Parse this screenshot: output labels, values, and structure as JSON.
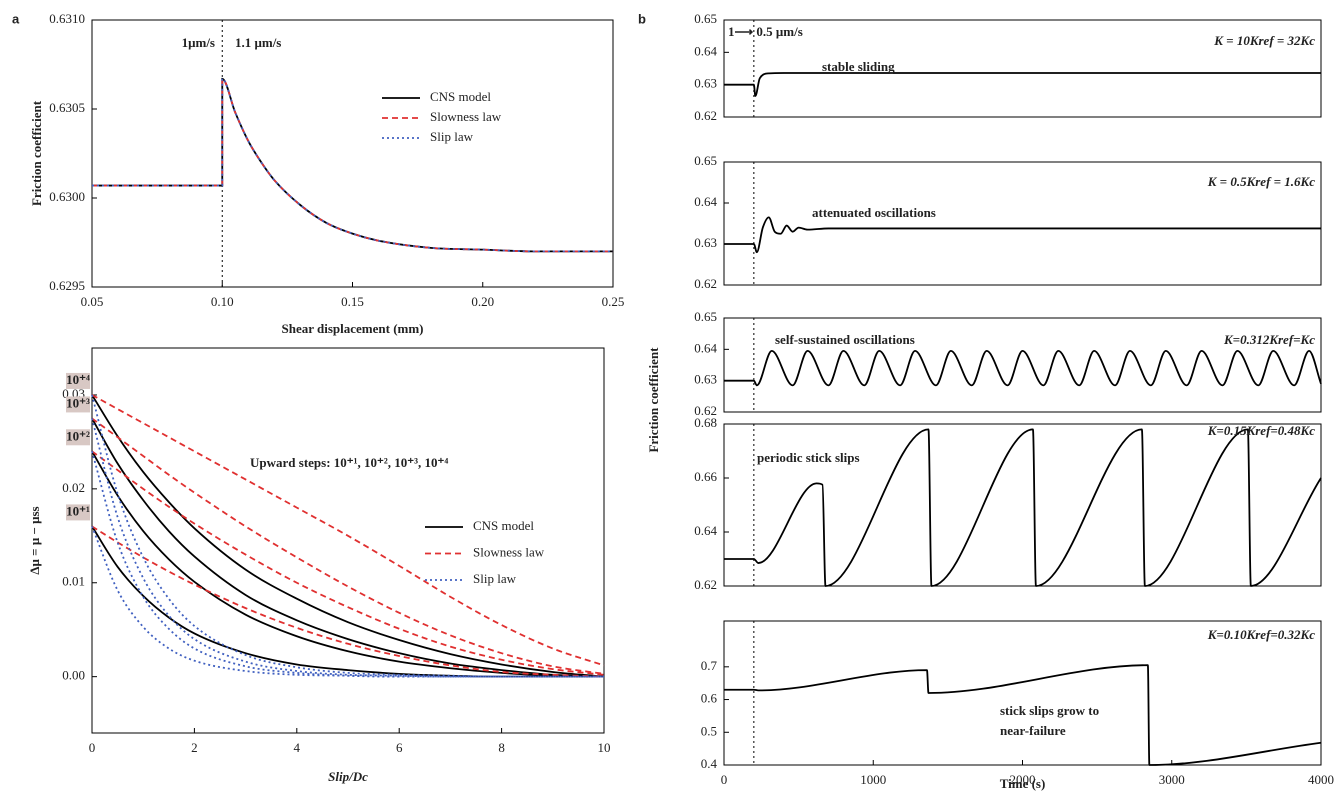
{
  "chart_data": [
    {
      "type": "line",
      "panel_label": "a",
      "xlabel": "Shear displacement (mm)",
      "ylabel": "Friction coefficient",
      "annotations": [
        "1μm/s",
        "1.1 μm/s"
      ],
      "annotation_color": "#d62728",
      "vline": 0.1,
      "xlim": [
        0.05,
        0.25
      ],
      "xticks": [
        0.05,
        {
          "value": 0.1,
          "label": "0.10"
        },
        0.15,
        {
          "value": 0.2,
          "label": "0.20"
        },
        0.25
      ],
      "ylim": [
        0.6295,
        0.631
      ],
      "yticks": [
        {
          "value": 0.631,
          "label": "0.6310"
        },
        0.6305,
        {
          "value": 0.63,
          "label": "0.6300"
        },
        0.6295
      ],
      "x": [
        0.05,
        0.1,
        0.1,
        0.105,
        0.11,
        0.115,
        0.12,
        0.13,
        0.14,
        0.15,
        0.16,
        0.18,
        0.2,
        0.22,
        0.25
      ],
      "series": [
        {
          "name": "CNS model",
          "color": "#000000",
          "dash": "solid",
          "values": [
            0.63007,
            0.63007,
            0.63067,
            0.63048,
            0.63032,
            0.6302,
            0.6301,
            0.62996,
            0.62986,
            0.6298,
            0.62976,
            0.62972,
            0.62971,
            0.6297,
            0.6297
          ]
        },
        {
          "name": "Slowness law",
          "color": "#e03030",
          "dash": "dashed",
          "values": [
            0.63007,
            0.63007,
            0.63067,
            0.63048,
            0.63032,
            0.6302,
            0.6301,
            0.62996,
            0.62986,
            0.6298,
            0.62976,
            0.62972,
            0.62971,
            0.6297,
            0.6297
          ]
        },
        {
          "name": "Slip law",
          "color": "#4060c0",
          "dash": "dotted",
          "values": [
            0.63007,
            0.63007,
            0.63067,
            0.63048,
            0.63032,
            0.6302,
            0.6301,
            0.62996,
            0.62986,
            0.6298,
            0.62976,
            0.62972,
            0.62971,
            0.6297,
            0.6297
          ]
        }
      ]
    },
    {
      "type": "line",
      "xlabel": "Slip/Dc",
      "ylabel": "Δμ = μ − μss",
      "annotations": [
        "Upward steps: 10⁺¹, 10⁺², 10⁺³, 10⁺⁴"
      ],
      "step_labels": [
        "10⁺⁴",
        "10⁺³",
        "10⁺²",
        "10⁺¹"
      ],
      "xlim": [
        0,
        10
      ],
      "xticks": [
        0,
        2,
        4,
        6,
        8,
        10
      ],
      "ylim": [
        -0.006,
        0.035
      ],
      "yticks": [
        {
          "value": 0,
          "label": "0.00"
        },
        0.01,
        0.02,
        0.03
      ],
      "x": [
        0,
        0.5,
        1,
        1.5,
        2,
        3,
        4,
        5,
        6,
        7,
        8,
        9,
        10
      ],
      "series": [
        {
          "name": "CNS model",
          "color": "#000000",
          "dash": "solid",
          "values": [
            [
              0.03,
              0.0256,
              0.0218,
              0.0186,
              0.0158,
              0.0114,
              0.0083,
              0.0058,
              0.0039,
              0.0024,
              0.0013,
              0.0005,
              0
            ],
            [
              0.0275,
              0.0227,
              0.0188,
              0.0155,
              0.0128,
              0.0087,
              0.006,
              0.004,
              0.0025,
              0.0014,
              0.0007,
              0.0002,
              0
            ],
            [
              0.024,
              0.0193,
              0.0155,
              0.0125,
              0.0101,
              0.0066,
              0.0043,
              0.0027,
              0.0016,
              0.0009,
              0.0004,
              0.0001,
              0
            ],
            [
              0.016,
              0.0117,
              0.0086,
              0.0063,
              0.0046,
              0.0025,
              0.0013,
              0.0007,
              0.0003,
              0.0001,
              0,
              0,
              0
            ]
          ]
        },
        {
          "name": "Slowness law",
          "color": "#e03030",
          "dash": "dashed",
          "values": [
            [
              0.03,
              0.0285,
              0.027,
              0.0255,
              0.024,
              0.021,
              0.018,
              0.015,
              0.0118,
              0.0085,
              0.0055,
              0.003,
              0.0012
            ],
            [
              0.0275,
              0.0255,
              0.0235,
              0.0215,
              0.0196,
              0.016,
              0.0127,
              0.0096,
              0.0068,
              0.0044,
              0.0025,
              0.0011,
              0.0003
            ],
            [
              0.024,
              0.022,
              0.02,
              0.0181,
              0.0163,
              0.013,
              0.01,
              0.0074,
              0.0051,
              0.0032,
              0.0018,
              0.0008,
              0.0002
            ],
            [
              0.016,
              0.0143,
              0.0127,
              0.0112,
              0.0098,
              0.0073,
              0.0052,
              0.0035,
              0.0022,
              0.0012,
              0.0005,
              0.0002,
              0
            ]
          ]
        },
        {
          "name": "Slip law",
          "color": "#4060c0",
          "dash": "dotted",
          "values": [
            [
              0.03,
              0.0195,
              0.0127,
              0.0083,
              0.0054,
              0.0023,
              0.001,
              0.0004,
              0.0002,
              0.0001,
              0,
              0,
              0
            ],
            [
              0.0275,
              0.017,
              0.0105,
              0.0065,
              0.004,
              0.0016,
              0.0006,
              0.0002,
              0.0001,
              0,
              0,
              0,
              0
            ],
            [
              0.024,
              0.0143,
              0.0085,
              0.0051,
              0.003,
              0.0011,
              0.0004,
              0.0001,
              0,
              0,
              0,
              0,
              0
            ],
            [
              0.016,
              0.0092,
              0.0053,
              0.003,
              0.0017,
              0.0006,
              0.0002,
              0.0001,
              0,
              0,
              0,
              0,
              0
            ]
          ]
        }
      ]
    },
    {
      "type": "line",
      "panel_label": "b",
      "step_note": "1⟶ 0.5 μm/s",
      "annotations": [
        "stable sliding"
      ],
      "k_label": "K = 10Kref = 32Kc",
      "vline": 200,
      "xlim": [
        0,
        4000
      ],
      "ylim": [
        0.62,
        0.65
      ],
      "yticks": [
        0.62,
        0.63,
        0.64,
        0.65
      ],
      "color": "#000000",
      "x": [
        0,
        200,
        210,
        240,
        300,
        400,
        4000
      ],
      "values": [
        0.63,
        0.63,
        0.6265,
        0.632,
        0.6335,
        0.6336,
        0.6336
      ]
    },
    {
      "type": "line",
      "annotations": [
        "attenuated oscillations"
      ],
      "k_label": "K = 0.5Kref = 1.6Kc",
      "vline": 200,
      "xlim": [
        0,
        4000
      ],
      "ylim": [
        0.62,
        0.65
      ],
      "yticks": [
        0.62,
        0.63,
        0.64,
        0.65
      ],
      "color": "#000000",
      "x": [
        0,
        200,
        220,
        260,
        300,
        340,
        380,
        420,
        460,
        500,
        560,
        700,
        4000
      ],
      "values": [
        0.63,
        0.63,
        0.628,
        0.634,
        0.6365,
        0.633,
        0.6325,
        0.6345,
        0.633,
        0.634,
        0.6335,
        0.6338,
        0.6338
      ]
    },
    {
      "type": "line",
      "ylabel": "Friction coefficient",
      "annotations": [
        "self-sustained oscillations"
      ],
      "k_label": "K=0.312Kref=Kc",
      "vline": 200,
      "xlim": [
        0,
        4000
      ],
      "ylim": [
        0.62,
        0.65
      ],
      "yticks": [
        0.62,
        0.63,
        0.64,
        0.65
      ],
      "color": "#000000",
      "x": [
        0,
        200,
        220,
        320,
        460,
        560,
        700,
        800,
        940,
        1040,
        1180,
        1280,
        1420,
        1520,
        1660,
        1760,
        1900,
        2000,
        2140,
        2240,
        2380,
        2480,
        2620,
        2720,
        2860,
        2960,
        3100,
        3200,
        3340,
        3440,
        3580,
        3680,
        3820,
        3920,
        4000
      ],
      "values": [
        0.63,
        0.63,
        0.6285,
        0.6395,
        0.6285,
        0.6395,
        0.6285,
        0.6395,
        0.6285,
        0.6395,
        0.6285,
        0.6395,
        0.6285,
        0.6395,
        0.6285,
        0.6395,
        0.6285,
        0.6395,
        0.6285,
        0.6395,
        0.6285,
        0.6395,
        0.6285,
        0.6395,
        0.6285,
        0.6395,
        0.6285,
        0.6395,
        0.6285,
        0.6395,
        0.6285,
        0.6395,
        0.6285,
        0.6395,
        0.629
      ]
    },
    {
      "type": "line",
      "annotations": [
        "periodic stick slips"
      ],
      "k_label": "K=0.15Kref=0.48Kc",
      "vline": 200,
      "xlim": [
        0,
        4000
      ],
      "ylim": [
        0.62,
        0.68
      ],
      "yticks": [
        0.62,
        0.64,
        0.66,
        0.68
      ],
      "color": "#000000",
      "x": [
        0,
        200,
        230,
        620,
        660,
        680,
        1370,
        1390,
        2070,
        2090,
        2800,
        2820,
        3510,
        3530,
        4000
      ],
      "values": [
        0.63,
        0.63,
        0.6285,
        0.658,
        0.6575,
        0.62,
        0.678,
        0.62,
        0.678,
        0.62,
        0.678,
        0.62,
        0.678,
        0.62,
        0.66
      ]
    },
    {
      "type": "line",
      "xlabel": "Time (s)",
      "annotations": [
        "stick slips grow to",
        "near-failure"
      ],
      "k_label": "K=0.10Kref=0.32Kc",
      "vline": 200,
      "xlim": [
        0,
        4000
      ],
      "xticks": [
        0,
        1000,
        2000,
        3000,
        4000
      ],
      "ylim": [
        0.4,
        0.84
      ],
      "yticks": [
        0.4,
        0.5,
        0.6,
        0.7
      ],
      "color": "#000000",
      "x": [
        0,
        200,
        230,
        1360,
        1370,
        2840,
        2850,
        4000
      ],
      "values": [
        0.63,
        0.63,
        0.628,
        0.69,
        0.62,
        0.705,
        0.4,
        0.468
      ]
    }
  ]
}
